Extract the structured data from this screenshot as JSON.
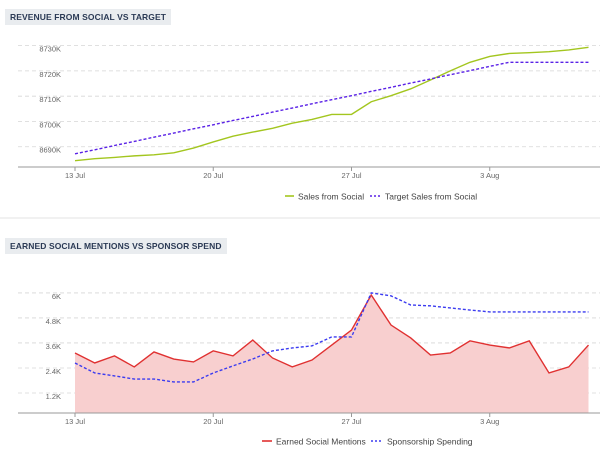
{
  "chart_data": [
    {
      "type": "line",
      "title": "REVENUE FROM SOCIAL VS TARGET",
      "categories": [
        "13 Jul",
        null,
        null,
        null,
        null,
        null,
        null,
        "20 Jul",
        null,
        null,
        null,
        null,
        null,
        null,
        "27 Jul",
        null,
        null,
        null,
        null,
        null,
        null,
        "3 Aug",
        null,
        null,
        null,
        null,
        null
      ],
      "series": [
        {
          "name": "Sales from Social",
          "color": "#a3c61f",
          "dashed": false,
          "area": false,
          "values": [
            8684.5,
            8685.3,
            8685.8,
            8686.4,
            8686.8,
            8687.6,
            8689.5,
            8691.9,
            8694.2,
            8695.8,
            8697.3,
            8699.3,
            8700.8,
            8702.8,
            8702.8,
            8707.8,
            8710.2,
            8712.9,
            8716.4,
            8720.0,
            8723.4,
            8725.7,
            8726.9,
            8727.2,
            8727.6,
            8728.3,
            8729.3
          ]
        },
        {
          "name": "Target Sales from Social",
          "color": "#5a22e6",
          "dashed": true,
          "area": false,
          "values": [
            8687.2,
            8688.8,
            8690.5,
            8692.1,
            8693.8,
            8695.4,
            8697.1,
            8698.7,
            8700.4,
            8702.0,
            8703.7,
            8705.3,
            8707.0,
            8708.6,
            8710.2,
            8711.9,
            8713.5,
            8715.2,
            8716.8,
            8718.5,
            8720.1,
            8721.8,
            8723.4,
            8723.4,
            8723.4,
            8723.4,
            8723.4
          ]
        }
      ],
      "ylim": [
        8682,
        8733
      ],
      "yticks": [
        {
          "value": 8690,
          "label": "8690K"
        },
        {
          "value": 8700,
          "label": "8700K"
        },
        {
          "value": 8710,
          "label": "8710K"
        },
        {
          "value": 8720,
          "label": "8720K"
        },
        {
          "value": 8730,
          "label": "8730K"
        }
      ],
      "grid": true
    },
    {
      "type": "line",
      "title": "EARNED SOCIAL MENTIONS VS SPONSOR SPEND",
      "categories": [
        "13 Jul",
        null,
        null,
        null,
        null,
        null,
        null,
        "20 Jul",
        null,
        null,
        null,
        null,
        null,
        null,
        "27 Jul",
        null,
        null,
        null,
        null,
        null,
        null,
        "3 Aug",
        null,
        null,
        null,
        null,
        null
      ],
      "series": [
        {
          "name": "Earned Social Mentions",
          "color": "#e03131",
          "dashed": false,
          "area": true,
          "area_color": "#f8cfcf",
          "values": [
            3.12,
            2.64,
            2.98,
            2.45,
            3.17,
            2.83,
            2.69,
            3.22,
            2.98,
            3.74,
            2.88,
            2.45,
            2.78,
            3.5,
            4.22,
            5.9,
            4.46,
            3.84,
            3.02,
            3.12,
            3.7,
            3.5,
            3.36,
            3.7,
            2.16,
            2.45,
            3.5
          ]
        },
        {
          "name": "Sponsorship Spending",
          "color": "#3b3bf0",
          "dashed": true,
          "area": false,
          "values": [
            2.64,
            2.16,
            2.02,
            1.87,
            1.87,
            1.73,
            1.73,
            2.16,
            2.5,
            2.83,
            3.22,
            3.36,
            3.46,
            3.89,
            3.89,
            6.0,
            5.86,
            5.42,
            5.38,
            5.28,
            5.18,
            5.09,
            5.09,
            5.09,
            5.09,
            5.09,
            5.09
          ]
        }
      ],
      "ylim": [
        0.24,
        6.62
      ],
      "yticks": [
        {
          "value": 1.2,
          "label": "1.2K"
        },
        {
          "value": 2.4,
          "label": "2.4K"
        },
        {
          "value": 3.6,
          "label": "3.6K"
        },
        {
          "value": 4.8,
          "label": "4.8K"
        },
        {
          "value": 6,
          "label": "6K"
        }
      ],
      "grid": true
    }
  ]
}
